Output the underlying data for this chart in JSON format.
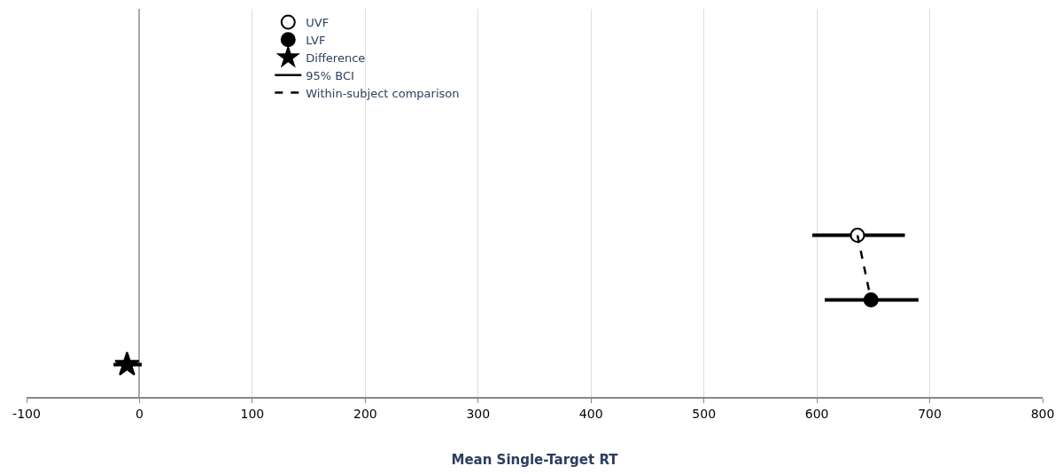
{
  "chart_data": {
    "type": "scatter",
    "orientation": "horizontal",
    "xlabel": "Mean Single-Target RT",
    "categories": [
      null,
      null,
      null,
      null,
      null,
      null
    ],
    "series": [
      {
        "name": "UVF",
        "color": "#ffffff",
        "marker": "circle",
        "values": [
          null,
          null,
          null,
          636,
          null,
          null
        ],
        "errors": [
          null,
          null,
          null,
          [
            596,
            678
          ],
          null,
          null
        ]
      },
      {
        "name": "LVF",
        "color": "#000000",
        "marker": "circle",
        "values": [
          null,
          null,
          null,
          null,
          648,
          null
        ],
        "errors": [
          null,
          null,
          null,
          null,
          [
            607,
            690
          ],
          null
        ]
      },
      {
        "name": "Difference",
        "color": "#000000",
        "marker": "star",
        "values": [
          null,
          null,
          null,
          null,
          null,
          -11
        ],
        "errors": [
          null,
          null,
          null,
          null,
          null,
          [
            -23,
            2
          ]
        ]
      },
      {
        "name": "95% BCI",
        "type": "line",
        "color": "#000000",
        "line_style": "solid",
        "values": [
          null,
          null,
          null,
          null,
          null,
          null
        ]
      },
      {
        "name": "Within-subject comparison",
        "type": "line",
        "color": "#000000",
        "line_style": "dashed",
        "values": [
          null,
          null,
          null,
          636,
          648,
          null
        ]
      }
    ],
    "xlim": [
      -100,
      800
    ],
    "xticks": [
      -100,
      0,
      100,
      200,
      300,
      400,
      500,
      600,
      700,
      800
    ],
    "grid": "x",
    "legend": "top left"
  }
}
